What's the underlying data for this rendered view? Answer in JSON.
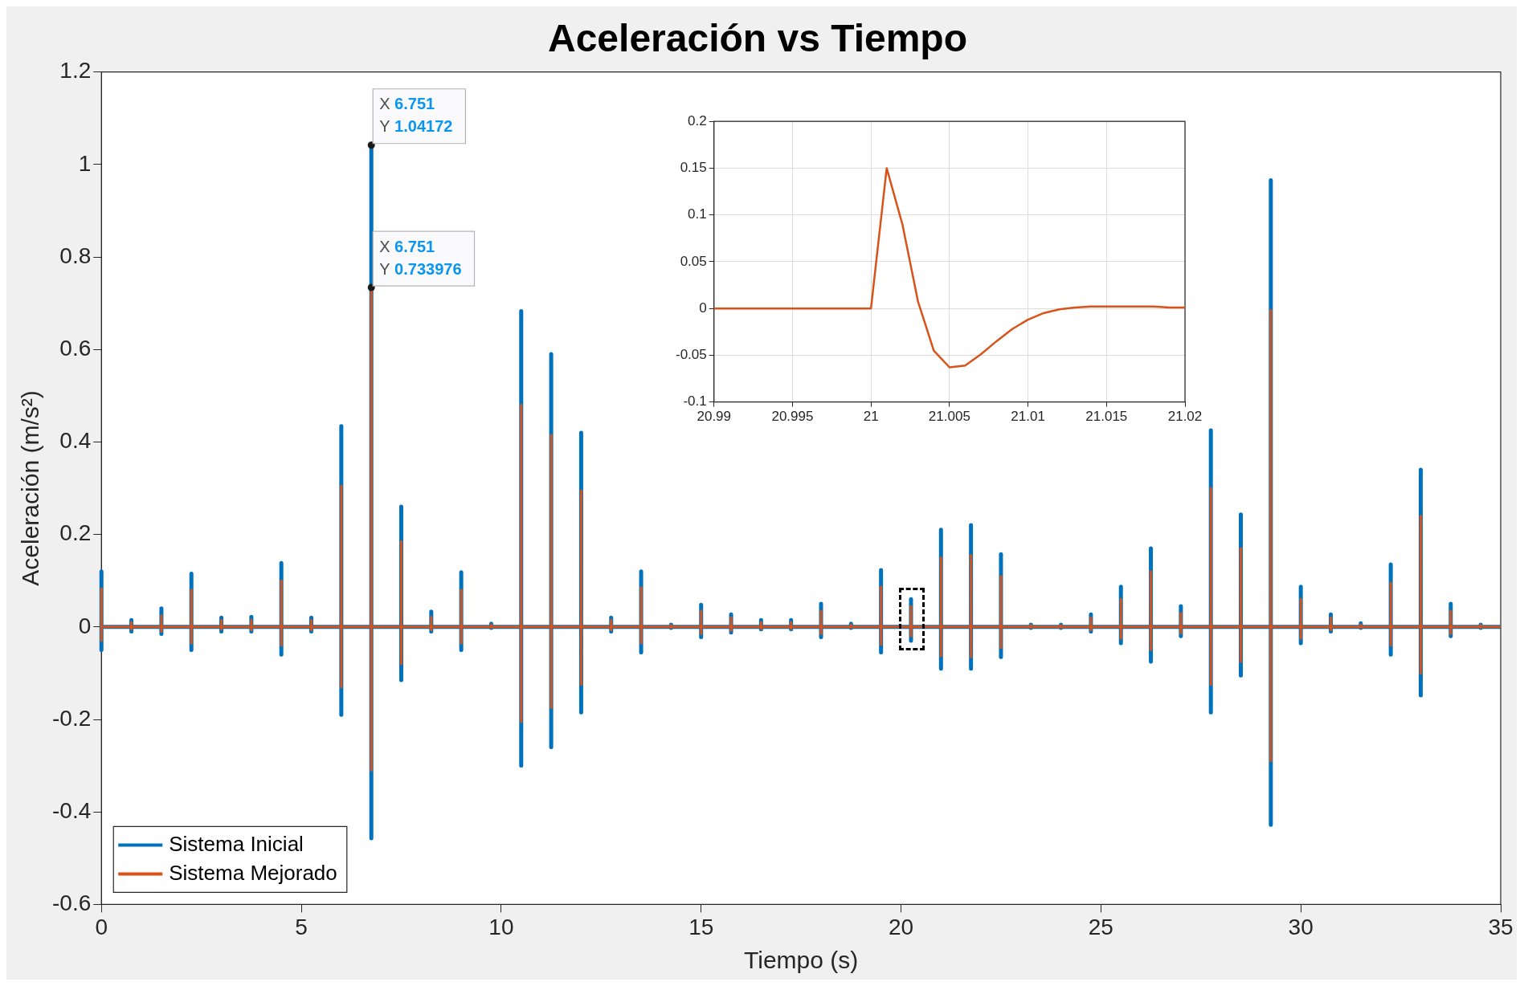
{
  "chart_data": [
    {
      "type": "line",
      "title": "Aceleración vs Tiempo",
      "xlabel": "Tiempo (s)",
      "ylabel": "Aceleración (m/s²)",
      "x": [
        0,
        0,
        0,
        0,
        0.75,
        0.75,
        0.75,
        0.75,
        1.5,
        1.5,
        1.5,
        1.5,
        2.25,
        2.25,
        2.25,
        2.25,
        3,
        3,
        3,
        3,
        3.75,
        3.75,
        3.75,
        3.75,
        4.5,
        4.5,
        4.5,
        4.5,
        5.25,
        5.25,
        5.25,
        5.25,
        6,
        6,
        6,
        6,
        6.751,
        6.751,
        6.751,
        6.751,
        7.5,
        7.5,
        7.5,
        7.5,
        8.25,
        8.25,
        8.25,
        8.25,
        9,
        9,
        9,
        9,
        9.75,
        9.75,
        9.75,
        9.75,
        10.5,
        10.5,
        10.5,
        10.5,
        11.25,
        11.25,
        11.25,
        11.25,
        12,
        12,
        12,
        12,
        12.75,
        12.75,
        12.75,
        12.75,
        13.5,
        13.5,
        13.5,
        13.5,
        14.25,
        14.25,
        14.25,
        14.25,
        15,
        15,
        15,
        15,
        15.75,
        15.75,
        15.75,
        15.75,
        16.5,
        16.5,
        16.5,
        16.5,
        17.25,
        17.25,
        17.25,
        17.25,
        18,
        18,
        18,
        18,
        18.75,
        18.75,
        18.75,
        18.75,
        19.5,
        19.5,
        19.5,
        19.5,
        20.25,
        20.25,
        20.25,
        20.25,
        21,
        21,
        21,
        21,
        21.75,
        21.75,
        21.75,
        21.75,
        22.5,
        22.5,
        22.5,
        22.5,
        23.25,
        23.25,
        23.25,
        23.25,
        24,
        24,
        24,
        24,
        24.75,
        24.75,
        24.75,
        24.75,
        25.5,
        25.5,
        25.5,
        25.5,
        26.25,
        26.25,
        26.25,
        26.25,
        27,
        27,
        27,
        27,
        27.75,
        27.75,
        27.75,
        27.75,
        28.5,
        28.5,
        28.5,
        28.5,
        29.25,
        29.25,
        29.25,
        29.25,
        30,
        30,
        30,
        30,
        30.75,
        30.75,
        30.75,
        30.75,
        31.5,
        31.5,
        31.5,
        31.5,
        32.25,
        32.25,
        32.25,
        32.25,
        33,
        33,
        33,
        33,
        33.75,
        33.75,
        33.75,
        33.75,
        34.5,
        34.5,
        34.5,
        34.5,
        35
      ],
      "series": [
        {
          "name": "Sistema Inicial",
          "color": "#0072bd",
          "values": [
            0,
            0.12,
            -0.05,
            0,
            0,
            0.015,
            -0.01,
            0,
            0,
            0.04,
            -0.015,
            0,
            0,
            0.115,
            -0.05,
            0,
            0,
            0.02,
            -0.01,
            0,
            0,
            0.022,
            -0.01,
            0,
            0,
            0.138,
            -0.06,
            0,
            0,
            0.02,
            -0.01,
            0,
            0,
            0.434,
            -0.19,
            0,
            0,
            1.04172,
            -0.457,
            0,
            0,
            0.26,
            -0.115,
            0,
            0,
            0.033,
            -0.01,
            0,
            0,
            0.118,
            -0.05,
            0,
            0,
            0.007,
            -0.002,
            0,
            0,
            0.683,
            -0.3,
            0,
            0,
            0.59,
            -0.26,
            0,
            0,
            0.42,
            -0.185,
            0,
            0,
            0.02,
            -0.01,
            0,
            0,
            0.12,
            -0.055,
            0,
            0,
            0.005,
            -0.002,
            0,
            0,
            0.048,
            -0.022,
            0,
            0,
            0.027,
            -0.012,
            0,
            0,
            0.015,
            -0.005,
            0,
            0,
            0.015,
            -0.005,
            0,
            0,
            0.05,
            -0.022,
            0,
            0,
            0.007,
            -0.002,
            0,
            0,
            0.123,
            -0.055,
            0,
            0,
            0.06,
            -0.03,
            0,
            0,
            0.21,
            -0.09,
            0,
            0,
            0.22,
            -0.09,
            0,
            0,
            0.157,
            -0.065,
            0,
            0,
            0.005,
            -0.002,
            0,
            0,
            0.005,
            -0.002,
            0,
            0,
            0.027,
            -0.01,
            0,
            0,
            0.087,
            -0.035,
            0,
            0,
            0.17,
            -0.075,
            0,
            0,
            0.045,
            -0.02,
            0,
            0,
            0.425,
            -0.185,
            0,
            0,
            0.243,
            -0.105,
            0,
            0,
            0.966,
            -0.428,
            0,
            0,
            0.087,
            -0.035,
            0,
            0,
            0.027,
            -0.01,
            0,
            0,
            0.008,
            -0.002,
            0,
            0,
            0.135,
            -0.06,
            0,
            0,
            0.34,
            -0.148,
            0,
            0,
            0.05,
            -0.02,
            0,
            0,
            0.005,
            -0.002,
            0,
            0
          ]
        },
        {
          "name": "Sistema Mejorado",
          "color": "#d95319",
          "values": [
            0,
            0.083,
            -0.03,
            0,
            0,
            0.01,
            -0.005,
            0,
            0,
            0.025,
            -0.01,
            0,
            0,
            0.08,
            -0.035,
            0,
            0,
            0.015,
            -0.005,
            0,
            0,
            0.015,
            -0.007,
            0,
            0,
            0.1,
            -0.04,
            0,
            0,
            0.015,
            -0.007,
            0,
            0,
            0.305,
            -0.13,
            0,
            0,
            0.733976,
            -0.31,
            0,
            0,
            0.185,
            -0.08,
            0,
            0,
            0.022,
            -0.007,
            0,
            0,
            0.08,
            -0.035,
            0,
            0,
            0.005,
            -0.001,
            0,
            0,
            0.48,
            -0.205,
            0,
            0,
            0.415,
            -0.175,
            0,
            0,
            0.295,
            -0.125,
            0,
            0,
            0.015,
            -0.007,
            0,
            0,
            0.085,
            -0.035,
            0,
            0,
            0.004,
            -0.001,
            0,
            0,
            0.035,
            -0.015,
            0,
            0,
            0.02,
            -0.008,
            0,
            0,
            0.01,
            -0.004,
            0,
            0,
            0.01,
            -0.004,
            0,
            0,
            0.035,
            -0.015,
            0,
            0,
            0.005,
            -0.001,
            0,
            0,
            0.087,
            -0.038,
            0,
            0,
            0.045,
            -0.02,
            0,
            0,
            0.15,
            -0.063,
            0,
            0,
            0.155,
            -0.065,
            0,
            0,
            0.11,
            -0.045,
            0,
            0,
            0.004,
            -0.001,
            0,
            0,
            0.004,
            -0.001,
            0,
            0,
            0.02,
            -0.007,
            0,
            0,
            0.06,
            -0.025,
            0,
            0,
            0.12,
            -0.05,
            0,
            0,
            0.03,
            -0.014,
            0,
            0,
            0.3,
            -0.125,
            0,
            0,
            0.17,
            -0.075,
            0,
            0,
            0.685,
            -0.29,
            0,
            0,
            0.06,
            -0.025,
            0,
            0,
            0.02,
            -0.007,
            0,
            0,
            0.005,
            -0.001,
            0,
            0,
            0.095,
            -0.04,
            0,
            0,
            0.24,
            -0.1,
            0,
            0,
            0.035,
            -0.015,
            0,
            0,
            0.004,
            -0.001,
            0,
            0
          ]
        }
      ],
      "xlim": [
        0,
        35
      ],
      "xticks": [
        0,
        5,
        10,
        15,
        20,
        25,
        30,
        35
      ],
      "ylim": [
        -0.6,
        1.2
      ],
      "yticks": [
        -0.6,
        -0.4,
        -0.2,
        0,
        0.2,
        0.4,
        0.6,
        0.8,
        1,
        1.2
      ],
      "annotations": [
        {
          "text": "X 6.751\nY 1.04172",
          "x": 6.751,
          "y": 1.04172
        },
        {
          "text": "X 6.751\nY 0.733976",
          "x": 6.751,
          "y": 0.733976
        }
      ],
      "grid": false,
      "legend": "bottom left",
      "marker": "none"
    },
    {
      "type": "line",
      "x": [
        20.99,
        21,
        21.001,
        21.002,
        21.003,
        21.004,
        21.005,
        21.006,
        21.007,
        21.008,
        21.009,
        21.01,
        21.011,
        21.012,
        21.013,
        21.014,
        21.015,
        21.016,
        21.017,
        21.018,
        21.019,
        21.02
      ],
      "series": [
        {
          "color": "#d95319",
          "values": [
            0,
            0,
            0.15,
            0.09,
            0.007,
            -0.045,
            -0.063,
            -0.061,
            -0.049,
            -0.035,
            -0.022,
            -0.012,
            -0.005,
            -0.001,
            0.001,
            0.002,
            0.002,
            0.002,
            0.002,
            0.002,
            0.001,
            0.001
          ]
        }
      ],
      "xlim": [
        20.99,
        21.02
      ],
      "xticks": [
        20.99,
        20.995,
        21,
        21.005,
        21.01,
        21.015,
        21.02
      ],
      "ylim": [
        -0.1,
        0.2
      ],
      "yticks": [
        -0.1,
        -0.05,
        0,
        0.05,
        0.1,
        0.15,
        0.2
      ],
      "grid": true,
      "legend": false,
      "marker": "none"
    }
  ]
}
